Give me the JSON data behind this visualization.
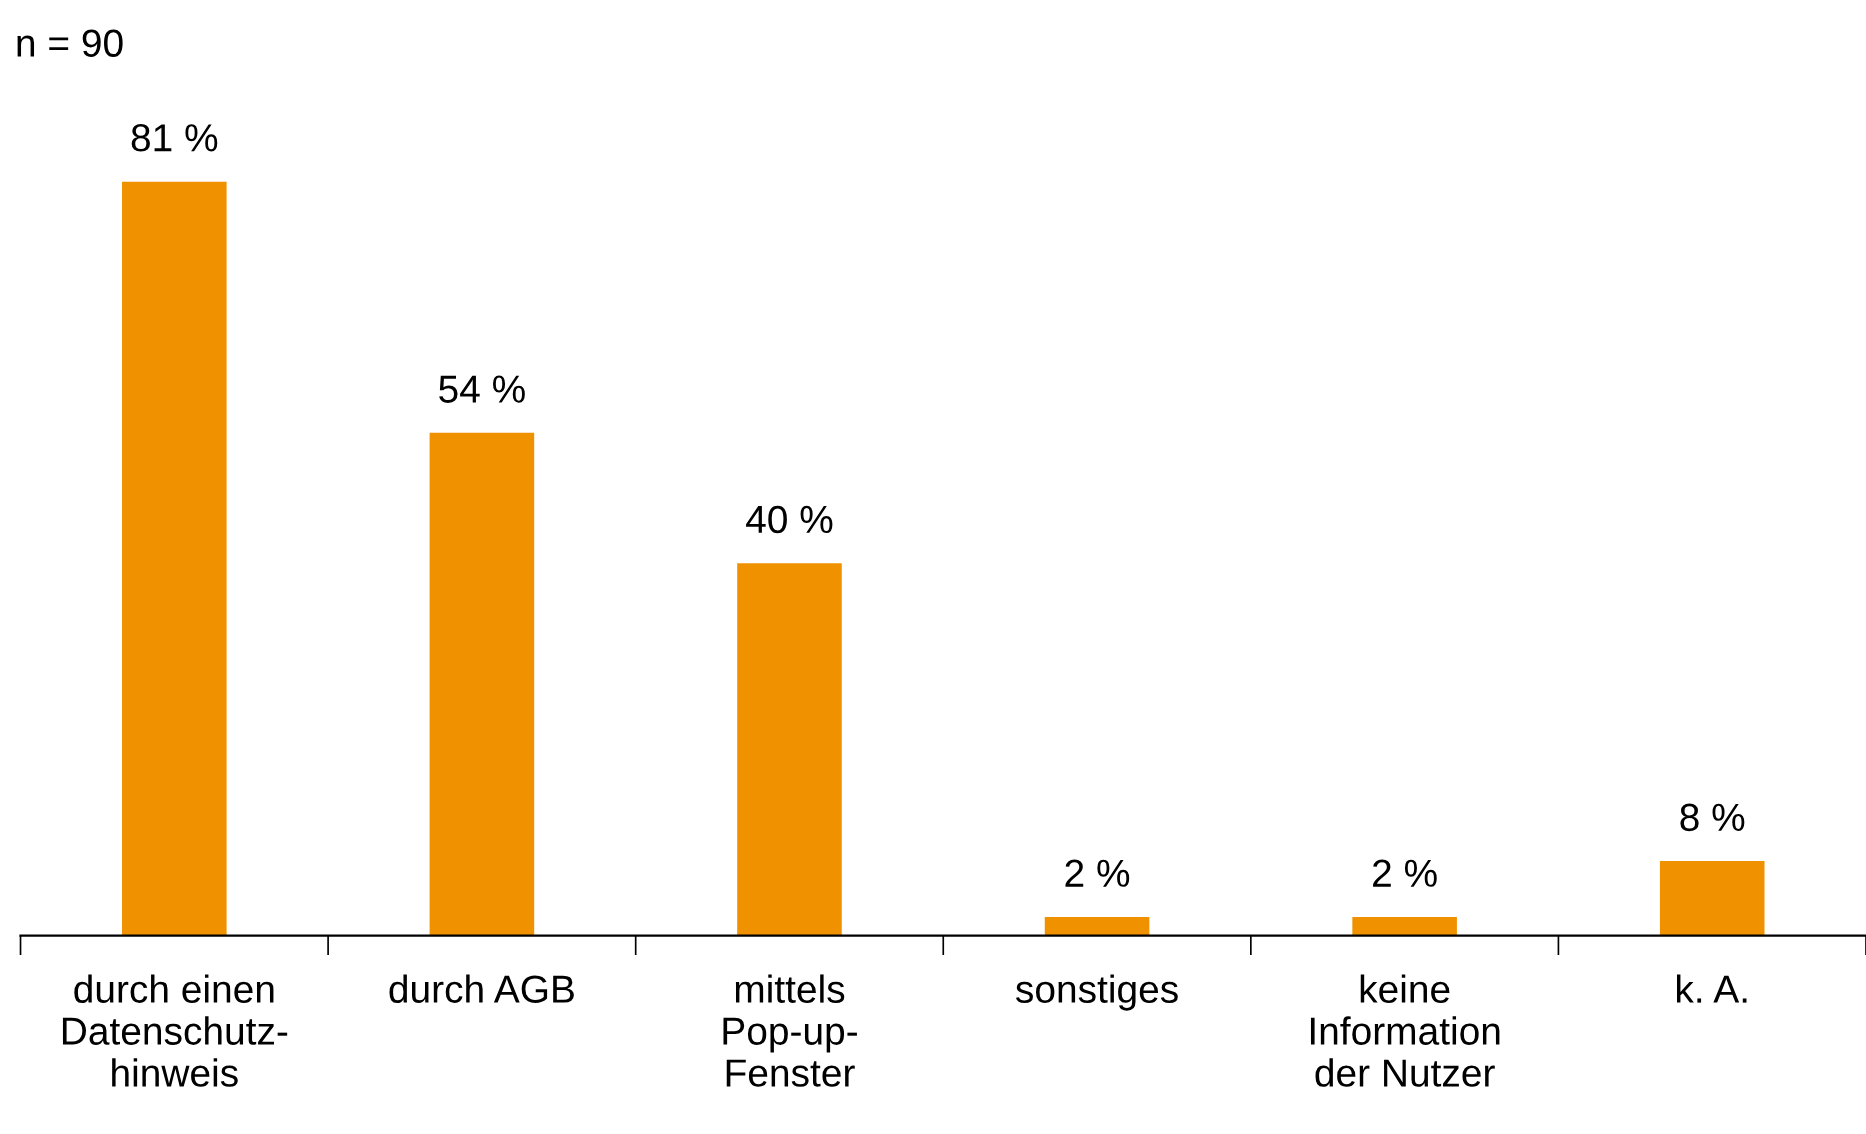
{
  "chart_data": {
    "type": "bar",
    "categories": [
      "durch einen\nDatenschutz-\nhinweis",
      "durch AGB",
      "mittels\nPop-up-\nFenster",
      "sonstiges",
      "keine\nInformation\nder Nutzer",
      "k. A."
    ],
    "values": [
      81,
      54,
      40,
      2,
      2,
      8
    ],
    "value_labels": [
      "81 %",
      "54 %",
      "40 %",
      "2 %",
      "2 %",
      "8 %"
    ],
    "color": "#f09100",
    "annotations": [
      "n = 90"
    ],
    "grid": false,
    "legend": false
  }
}
